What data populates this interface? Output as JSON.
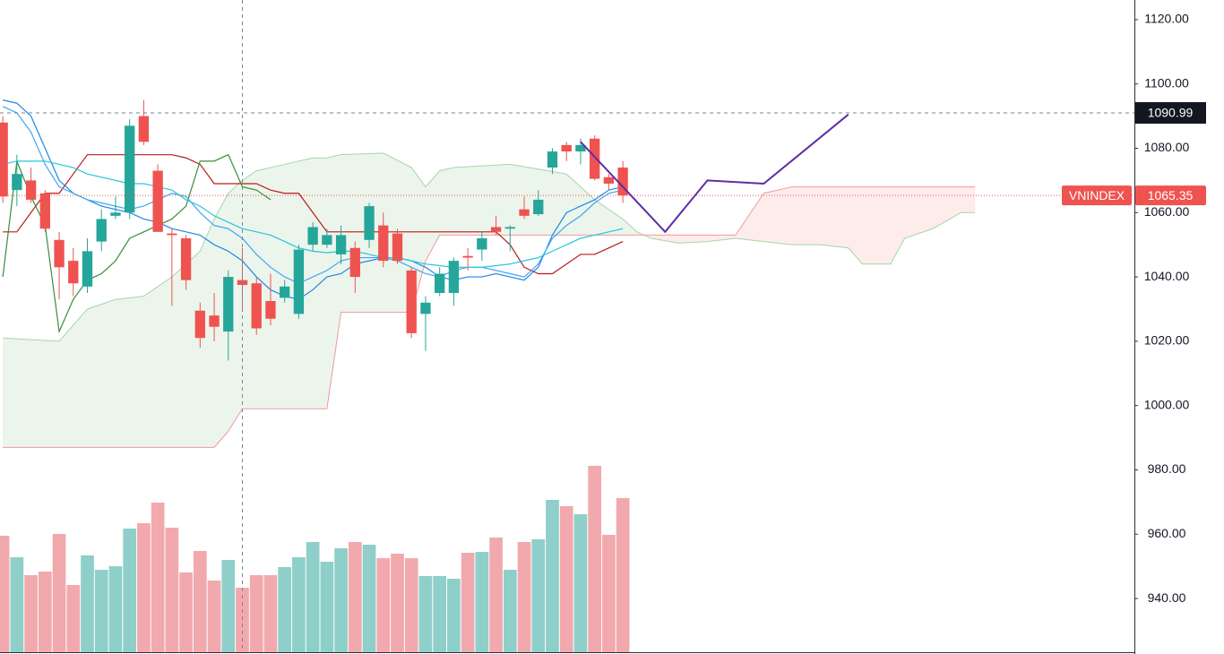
{
  "chart_data": {
    "type": "candlestick",
    "xlim": [
      -0.2,
      80.3
    ],
    "ylim": [
      923.3,
      1126.1
    ],
    "yticks": [
      {
        "value": 940,
        "label": "940.00"
      },
      {
        "value": 960,
        "label": "960.00"
      },
      {
        "value": 980,
        "label": "980.00"
      },
      {
        "value": 1000,
        "label": "1000.00"
      },
      {
        "value": 1020,
        "label": "1020.00"
      },
      {
        "value": 1040,
        "label": "1040.00"
      },
      {
        "value": 1060,
        "label": "1060.00"
      },
      {
        "value": 1080,
        "label": "1080.00"
      },
      {
        "value": 1100,
        "label": "1100.00"
      },
      {
        "value": 1120,
        "label": "1120.00"
      }
    ],
    "candles": {
      "up_color": "#26a69a",
      "down_color": "#ef5350",
      "open": [
        1088,
        1067,
        1070,
        1066,
        1051.5,
        1045,
        1037,
        1051,
        1059,
        1060,
        1090,
        1073,
        1053.5,
        1052,
        1029.5,
        1028,
        1023,
        1039,
        1038,
        1032.5,
        1033.5,
        1028.5,
        1050,
        1050,
        1047,
        1049,
        1051.5,
        1056,
        1053.5,
        1042,
        1028.5,
        1035,
        1035,
        1046.5,
        1048.5,
        1055.5,
        1055,
        1061,
        1059.5,
        1074,
        1081,
        1079,
        1083,
        1071,
        1074
      ],
      "high": [
        1090,
        1078,
        1074,
        1067,
        1054,
        1049,
        1052,
        1061,
        1065,
        1089,
        1095,
        1075,
        1055,
        1053,
        1032,
        1035,
        1042,
        1049,
        1040,
        1041,
        1039,
        1050,
        1057,
        1055,
        1056,
        1051,
        1063,
        1060,
        1055,
        1043,
        1034,
        1043,
        1046,
        1049,
        1054,
        1059,
        1056,
        1065,
        1067,
        1080,
        1082,
        1083,
        1084,
        1072,
        1076
      ],
      "low": [
        1063,
        1062,
        1063,
        1054,
        1033,
        1034,
        1035,
        1048,
        1058,
        1058,
        1081,
        1054,
        1031,
        1036,
        1018,
        1020,
        1014,
        1030,
        1022,
        1025,
        1032,
        1027,
        1048,
        1049,
        1044,
        1035,
        1049,
        1043,
        1044,
        1021,
        1017,
        1034,
        1031,
        1042,
        1045,
        1053,
        1048,
        1058,
        1059,
        1072,
        1076,
        1075,
        1070,
        1067,
        1063
      ],
      "close": [
        1065,
        1072,
        1064,
        1055,
        1043,
        1038,
        1048,
        1058,
        1060,
        1087,
        1082,
        1054,
        1053,
        1039,
        1021,
        1024.5,
        1040,
        1037.5,
        1024,
        1027,
        1037,
        1048.5,
        1055.5,
        1053,
        1053,
        1040,
        1062,
        1045,
        1045,
        1022.5,
        1032,
        1041,
        1045,
        1046,
        1052,
        1054,
        1055.5,
        1059,
        1064,
        1079,
        1079,
        1081,
        1070.5,
        1069,
        1065.35
      ]
    },
    "volume": {
      "vlim": [
        0,
        728
      ],
      "up_color": "#8fcfca",
      "down_color": "#f2a9ad",
      "values": [
        130,
        106,
        86,
        90,
        132,
        75,
        108,
        92,
        96,
        138,
        144,
        167,
        139,
        89,
        113,
        80,
        103,
        72,
        86,
        86,
        95,
        106,
        123,
        101,
        116,
        123,
        120,
        105,
        110,
        105,
        85,
        85,
        82,
        111,
        112,
        128,
        92,
        123,
        126,
        170,
        163,
        154,
        208,
        131,
        172
      ]
    },
    "cloud": {
      "span_a_color": "#a5d6a7",
      "span_b_color": "#ef9a9a",
      "x": [
        0,
        4,
        6,
        8,
        10,
        12,
        14,
        15,
        16,
        17,
        18,
        20,
        22,
        23,
        24,
        27,
        29,
        30,
        31,
        32,
        36,
        40,
        42,
        44,
        45,
        46,
        48,
        50,
        52,
        54,
        56,
        58,
        60,
        61,
        63,
        64,
        66,
        68,
        69
      ],
      "span_a": [
        1021,
        1020,
        1030,
        1033,
        1034,
        1040,
        1048,
        1058,
        1066,
        1070,
        1073,
        1075,
        1077,
        1077,
        1078,
        1078.5,
        1074,
        1068,
        1073,
        1074,
        1075,
        1072,
        1064,
        1058,
        1054,
        1052,
        1050.5,
        1051,
        1052,
        1051,
        1050,
        1050,
        1049,
        1044,
        1044,
        1052,
        1055,
        1060,
        1060
      ],
      "span_b": [
        987,
        987,
        987,
        987,
        987,
        987,
        987,
        987,
        992,
        999,
        999,
        999,
        999,
        999,
        1029,
        1029,
        1029,
        1045,
        1053,
        1053,
        1053,
        1053,
        1053,
        1053,
        1053,
        1053,
        1053,
        1053,
        1053,
        1066,
        1068,
        1068,
        1068,
        1068,
        1068,
        1068,
        1068,
        1068,
        1068
      ]
    },
    "lines": [
      {
        "color": "#b71c1c",
        "values": [
          1054,
          1054,
          1060,
          1066,
          1066,
          1072,
          1078,
          1078,
          1078,
          1078,
          1078,
          1078,
          1078,
          1077,
          1075,
          1069,
          1069,
          1069,
          1069,
          1067,
          1066,
          1066,
          1060,
          1054,
          1054,
          1054,
          1054,
          1054,
          1054,
          1054,
          1054,
          1054,
          1054,
          1054,
          1054,
          1054,
          1050,
          1043,
          1041,
          1041,
          1044,
          1047,
          1047,
          1049,
          1051
        ]
      },
      {
        "color": "#388e3c",
        "values": [
          1040,
          1076,
          1065,
          1056,
          1023,
          1033,
          1039,
          1041,
          1045,
          1052,
          1054,
          1056,
          1058,
          1062,
          1076,
          1076,
          1078,
          1068,
          1067,
          1064
        ]
      },
      {
        "color": "#1e88e5",
        "values": [
          1095,
          1094,
          1090,
          1080,
          1070,
          1066,
          1064,
          1062,
          1061,
          1060,
          1058,
          1057,
          1055,
          1054,
          1053,
          1050,
          1048,
          1045,
          1040,
          1036,
          1034,
          1033,
          1036,
          1040,
          1041,
          1044,
          1045,
          1046,
          1046,
          1045,
          1043,
          1040,
          1039,
          1040,
          1040,
          1041,
          1040,
          1039,
          1043,
          1053,
          1060,
          1062,
          1064,
          1067,
          1068
        ]
      },
      {
        "color": "#42a5f5",
        "values": [
          1093,
          1091,
          1085,
          1075,
          1068,
          1066,
          1064,
          1063,
          1062,
          1061,
          1062,
          1064,
          1066,
          1065,
          1060,
          1056,
          1055,
          1052,
          1047,
          1043,
          1040,
          1038,
          1040,
          1042,
          1045,
          1046,
          1046,
          1046,
          1045,
          1043,
          1041,
          1040,
          1042,
          1043,
          1043,
          1042,
          1041,
          1040,
          1044,
          1052,
          1056,
          1059,
          1063,
          1066,
          1067
        ]
      },
      {
        "color": "#26c6da",
        "values": [
          1075,
          1076,
          1076,
          1076,
          1075,
          1074,
          1072,
          1071,
          1070,
          1069,
          1069,
          1068,
          1067,
          1064,
          1062,
          1059,
          1057,
          1055,
          1054,
          1053,
          1051,
          1049,
          1048,
          1047.5,
          1048,
          1048,
          1047,
          1046,
          1046,
          1045,
          1044,
          1043.5,
          1043,
          1043,
          1043,
          1043.5,
          1044,
          1045,
          1046,
          1048,
          1050,
          1052,
          1053,
          1054,
          1055
        ]
      }
    ],
    "forecast": {
      "color": "#5e2ca5",
      "x": [
        41,
        47,
        50,
        54,
        60
      ],
      "values": [
        1082,
        1054,
        1070,
        1069,
        1090.5
      ]
    },
    "crosshair": {
      "x": 17,
      "y": 1090.99,
      "label": "1090.99"
    },
    "last_price": {
      "symbol": "VNINDEX",
      "value": 1065.35,
      "label": "1065.35",
      "color": "#ef5350"
    }
  }
}
